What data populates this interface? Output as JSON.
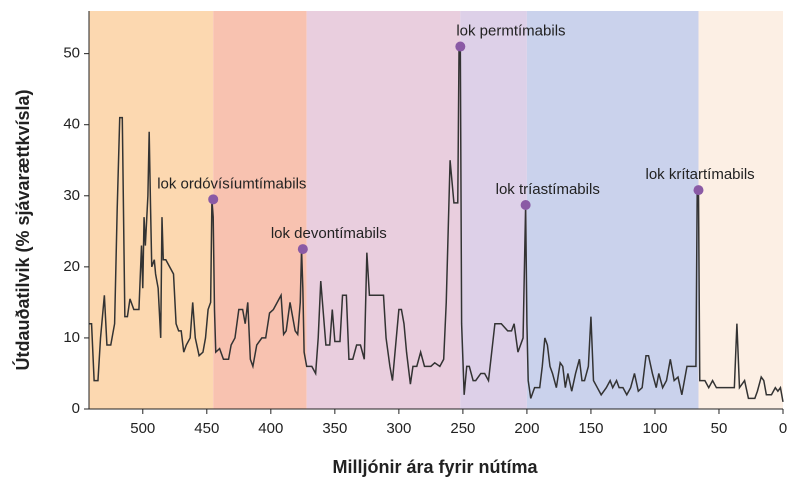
{
  "chart_data": {
    "type": "line",
    "x_label": "Milljónir ára fyrir nútíma",
    "y_label": "Útdauðatilvik (% sjávarættkvísla)",
    "xlim": [
      542,
      0
    ],
    "ylim": [
      0,
      56
    ],
    "xticks": [
      500,
      450,
      400,
      350,
      300,
      250,
      200,
      150,
      100,
      50,
      0
    ],
    "yticks": [
      0,
      10,
      20,
      30,
      40,
      50
    ],
    "regions": [
      {
        "start": 542,
        "end": 445,
        "color": "#fcd8b0"
      },
      {
        "start": 445,
        "end": 372,
        "color": "#f8c2b0"
      },
      {
        "start": 372,
        "end": 252,
        "color": "#e9cede"
      },
      {
        "start": 252,
        "end": 200,
        "color": "#ddd0e8"
      },
      {
        "start": 200,
        "end": 66,
        "color": "#cad2ec"
      },
      {
        "start": 66,
        "end": 0,
        "color": "#fcefe4"
      }
    ],
    "series": [
      {
        "color": "#333333",
        "x": [
          542,
          540,
          538,
          535,
          533,
          530,
          528,
          525,
          522,
          520,
          518,
          516,
          514,
          512,
          510,
          507,
          503,
          501,
          500,
          499,
          498,
          496,
          495,
          494,
          493,
          491,
          490,
          488,
          486,
          485,
          484,
          482,
          479,
          476,
          474,
          472,
          470,
          468,
          466,
          463,
          461,
          459,
          456,
          453,
          451,
          449,
          447,
          446,
          445,
          444,
          443,
          440,
          437,
          433,
          431,
          428,
          425,
          422,
          420,
          418,
          416,
          414,
          411,
          407,
          404,
          401,
          398,
          395,
          392,
          390,
          388,
          385,
          383,
          381,
          379,
          377,
          376,
          375,
          374,
          372,
          370,
          368,
          365,
          363,
          361,
          357,
          354,
          352,
          350,
          346,
          344,
          341,
          339,
          336,
          333,
          330,
          327,
          325,
          323,
          321,
          319,
          314,
          312,
          310,
          307,
          305,
          302,
          300,
          298,
          296,
          294,
          291,
          289,
          286,
          283,
          280,
          275,
          272,
          268,
          265,
          263,
          260,
          257,
          254,
          253,
          252,
          251,
          249,
          247,
          245,
          242,
          240,
          236,
          233,
          230,
          225,
          220,
          215,
          212,
          210,
          207,
          203,
          201,
          200,
          199,
          197,
          194,
          190,
          188,
          186,
          184,
          182,
          180,
          177,
          174,
          172,
          170,
          168,
          165,
          162,
          159,
          157,
          155,
          152,
          150,
          148,
          145,
          142,
          138,
          135,
          133,
          130,
          128,
          125,
          122,
          119,
          116,
          113,
          110,
          107,
          105,
          102,
          99,
          97,
          94,
          91,
          88,
          85,
          82,
          79,
          75,
          71,
          68,
          67,
          66,
          65,
          63,
          61,
          58,
          55,
          52,
          48,
          45,
          38,
          36,
          34,
          30,
          27,
          22,
          20,
          17,
          15,
          13,
          9,
          6,
          4,
          2,
          0
        ],
        "values": [
          12,
          12,
          4,
          4,
          10,
          16,
          9,
          9,
          12,
          28,
          41,
          41,
          13,
          13,
          15.5,
          14,
          14,
          23,
          17,
          27,
          23,
          30,
          39,
          29,
          20,
          21,
          19,
          17,
          10,
          27,
          21,
          21,
          20,
          19,
          12,
          11,
          11,
          8,
          9,
          10,
          15,
          10,
          7.5,
          8,
          10,
          14,
          15,
          29.5,
          27,
          14,
          8,
          8.5,
          7,
          7,
          9,
          10,
          14,
          14,
          12,
          15,
          7,
          6,
          9,
          10,
          10,
          13.5,
          14,
          15,
          16,
          10.5,
          11,
          15,
          13,
          11,
          10.5,
          15,
          22.5,
          17,
          8,
          6,
          6,
          6,
          5,
          10,
          18,
          9,
          9,
          14,
          9.5,
          9.5,
          16,
          16,
          7,
          7,
          9,
          9,
          7,
          22,
          16,
          16,
          16,
          16,
          16,
          10,
          6,
          4,
          10,
          14,
          14,
          12,
          8,
          3.5,
          6,
          6,
          8,
          6,
          6,
          6.5,
          6,
          7,
          15,
          35,
          29,
          29,
          51,
          51,
          12,
          2,
          6,
          6,
          4,
          4,
          5,
          5,
          4,
          12,
          12,
          11,
          11,
          12,
          8,
          10,
          28.7,
          12,
          4,
          1.5,
          3,
          3,
          6,
          10,
          9,
          6,
          5,
          3,
          6.5,
          6,
          3,
          5,
          2.5,
          5,
          7,
          4,
          4,
          6,
          13,
          4,
          3,
          2,
          3,
          4,
          3,
          4,
          3,
          3,
          2,
          3,
          5,
          2.5,
          3,
          7.5,
          7.5,
          5,
          3,
          5,
          3,
          4,
          7,
          4,
          4.5,
          2,
          6,
          6,
          6,
          30.8,
          30.8,
          4,
          4,
          4,
          3,
          4,
          3,
          3,
          3,
          3,
          12,
          3,
          4,
          1.5,
          1.5,
          2.5,
          4.5,
          4,
          2,
          2,
          3,
          2.5,
          3,
          1
        ]
      }
    ],
    "events": [
      {
        "label": "lok ordóvísíumtímabils",
        "x": 445,
        "y": 29.5
      },
      {
        "label": "lok devontímabils",
        "x": 375,
        "y": 22.5
      },
      {
        "label": "lok permtímabils",
        "x": 252,
        "y": 51
      },
      {
        "label": "lok tríastímabils",
        "x": 201,
        "y": 28.7
      },
      {
        "label": "lok krítartímabils",
        "x": 66,
        "y": 30.8
      }
    ],
    "event_color": "#8a5aa5"
  }
}
